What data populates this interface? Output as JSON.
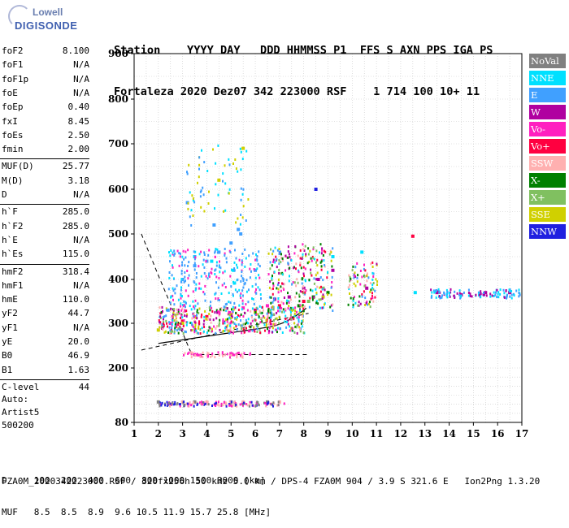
{
  "logo": {
    "brand": "Lowell",
    "product": "DIGISONDE"
  },
  "header": {
    "line1": "Station    YYYY DAY   DDD HHMMSS P1  FFS S AXN PPS IGA PS",
    "line2": "Fortaleza 2020 Dez07 342 223000 RSF    1 714 100 10+ 11"
  },
  "params": [
    {
      "k": "foF2",
      "v": "8.100"
    },
    {
      "k": "foF1",
      "v": "N/A"
    },
    {
      "k": "foF1p",
      "v": "N/A"
    },
    {
      "k": "foE",
      "v": "N/A"
    },
    {
      "k": "foEp",
      "v": "0.40"
    },
    {
      "k": "fxI",
      "v": "8.45"
    },
    {
      "k": "foEs",
      "v": "2.50"
    },
    {
      "k": "fmin",
      "v": "2.00"
    },
    {
      "k": "MUF(D)",
      "v": "25.77"
    },
    {
      "k": "M(D)",
      "v": "3.18"
    },
    {
      "k": "D",
      "v": "N/A"
    },
    {
      "k": "h`F",
      "v": "285.0"
    },
    {
      "k": "h`F2",
      "v": "285.0"
    },
    {
      "k": "h`E",
      "v": "N/A"
    },
    {
      "k": "h`Es",
      "v": "115.0"
    },
    {
      "k": "hmF2",
      "v": "318.4"
    },
    {
      "k": "hmF1",
      "v": "N/A"
    },
    {
      "k": "hmE",
      "v": "110.0"
    },
    {
      "k": "yF2",
      "v": "44.7"
    },
    {
      "k": "yF1",
      "v": "N/A"
    },
    {
      "k": "yE",
      "v": "20.0"
    },
    {
      "k": "B0",
      "v": "46.9"
    },
    {
      "k": "B1",
      "v": "1.63"
    },
    {
      "k": "C-level",
      "v": "44"
    }
  ],
  "extra": {
    "l1": "Auto:",
    "l2": "Artist5",
    "l3": "500200"
  },
  "legend": [
    {
      "label": "NoVal",
      "color": "#808080"
    },
    {
      "label": "NNE",
      "color": "#00e0ff"
    },
    {
      "label": "E",
      "color": "#40a0ff"
    },
    {
      "label": "W",
      "color": "#b000a0"
    },
    {
      "label": "Vo-",
      "color": "#ff20c0"
    },
    {
      "label": "Vo+",
      "color": "#ff0040"
    },
    {
      "label": "SSW",
      "color": "#ffb0b0"
    },
    {
      "label": "X-",
      "color": "#008000"
    },
    {
      "label": "X+",
      "color": "#80c060"
    },
    {
      "label": "SSE",
      "color": "#d0d000"
    },
    {
      "label": "NNW",
      "color": "#2020e0"
    }
  ],
  "bottom": {
    "line1": "D     100  200  400  600  800 1000 1500 3000 [km]",
    "line2": "MUF   8.5  8.5  8.9  9.6 10.5 11.9 15.7 25.8 [MHz]"
  },
  "footer": "FZA0M_2020342223000.RSF / 320fx256h 50 kHz 5.0 km / DPS-4 FZA0M 904 / 3.9 S 321.6 E   Ion2Png 1.3.20",
  "chart_data": {
    "type": "scatter",
    "title": "",
    "xlabel": "",
    "ylabel": "",
    "xlim": [
      1,
      17
    ],
    "ylim": [
      80,
      900
    ],
    "xticks": [
      "1",
      "2",
      "3",
      "4",
      "5",
      "6",
      "7",
      "8",
      "9",
      "10",
      "11",
      "12",
      "13",
      "14",
      "15",
      "16",
      "17"
    ],
    "yticks": [
      "80",
      "200",
      "300",
      "400",
      "500",
      "600",
      "700",
      "800",
      "900"
    ],
    "grid": true,
    "series": [
      {
        "name": "NNE",
        "color": "#00e0ff",
        "points": [
          [
            3.5,
            450
          ],
          [
            4.2,
            440
          ],
          [
            5.1,
            420
          ],
          [
            9.2,
            450
          ],
          [
            10.4,
            460
          ],
          [
            12.6,
            370
          ]
        ]
      },
      {
        "name": "E",
        "color": "#40a0ff",
        "points": [
          [
            2.4,
            330
          ],
          [
            3.0,
            400
          ],
          [
            3.5,
            430
          ],
          [
            4.0,
            440
          ],
          [
            4.5,
            460
          ],
          [
            5.0,
            480
          ],
          [
            5.4,
            500
          ],
          [
            6.0,
            420
          ],
          [
            3.2,
            570
          ],
          [
            4.3,
            520
          ],
          [
            5.3,
            510
          ]
        ]
      },
      {
        "name": "W",
        "color": "#b000a0",
        "points": [
          [
            6.8,
            355
          ],
          [
            7.4,
            360
          ],
          [
            8.0,
            380
          ],
          [
            8.6,
            400
          ],
          [
            9.2,
            420
          ],
          [
            10.6,
            380
          ],
          [
            13.5,
            370
          ],
          [
            14.5,
            365
          ],
          [
            15.5,
            370
          ],
          [
            16.5,
            370
          ]
        ]
      },
      {
        "name": "Vo-",
        "color": "#ff20c0",
        "points": [
          [
            2.5,
            300
          ],
          [
            3.5,
            315
          ],
          [
            4.5,
            325
          ],
          [
            5.5,
            335
          ],
          [
            6.5,
            340
          ],
          [
            3.5,
            230
          ],
          [
            5.0,
            232
          ]
        ]
      },
      {
        "name": "Vo+",
        "color": "#ff0040",
        "points": [
          [
            2.2,
            295
          ],
          [
            3.0,
            305
          ],
          [
            4.0,
            315
          ],
          [
            5.0,
            320
          ],
          [
            6.0,
            330
          ],
          [
            7.0,
            340
          ],
          [
            8.0,
            350
          ],
          [
            12.5,
            495
          ]
        ]
      },
      {
        "name": "SSE",
        "color": "#d0d000",
        "points": [
          [
            2.0,
            285
          ],
          [
            3.0,
            300
          ],
          [
            4.0,
            310
          ],
          [
            5.0,
            320
          ],
          [
            6.0,
            325
          ],
          [
            7.5,
            330
          ],
          [
            5.5,
            690
          ],
          [
            4.5,
            620
          ],
          [
            8.8,
            360
          ]
        ]
      },
      {
        "name": "X-",
        "color": "#008000",
        "points": [
          [
            7.8,
            340
          ],
          [
            8.4,
            360
          ],
          [
            9.0,
            370
          ]
        ]
      },
      {
        "name": "X+",
        "color": "#80c060",
        "points": [
          [
            8.2,
            350
          ],
          [
            8.8,
            380
          ]
        ]
      },
      {
        "name": "NNW",
        "color": "#2020e0",
        "points": [
          [
            2.5,
            120
          ],
          [
            8.5,
            600
          ]
        ]
      },
      {
        "name": "SSW",
        "color": "#ffb0b0",
        "points": [
          [
            3.0,
            125
          ],
          [
            4.0,
            125
          ],
          [
            5.5,
            125
          ],
          [
            7.0,
            125
          ]
        ]
      },
      {
        "name": "NoVal",
        "color": "#808080",
        "points": [
          [
            2.0,
            125
          ],
          [
            3.5,
            125
          ],
          [
            5.0,
            125
          ],
          [
            6.5,
            125
          ]
        ]
      }
    ]
  }
}
